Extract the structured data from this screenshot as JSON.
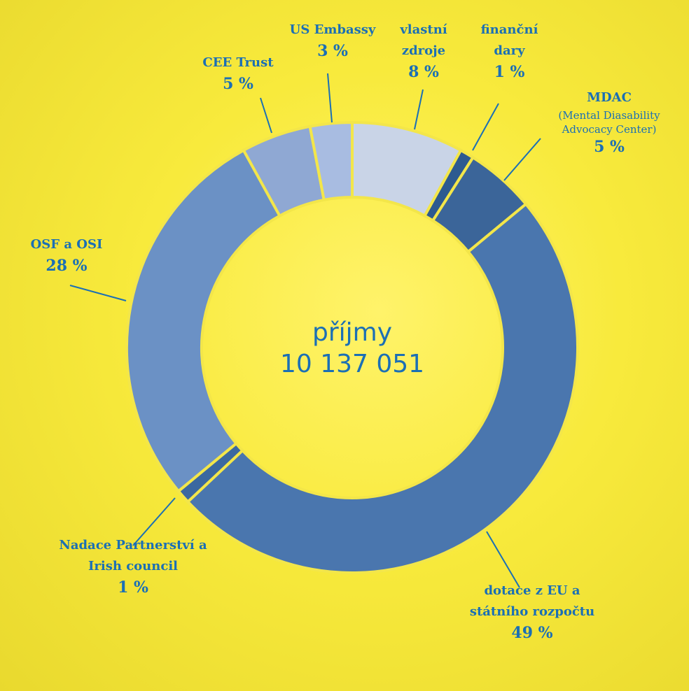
{
  "chart_data": {
    "type": "donut",
    "center_title": "příjmy",
    "center_value": "10 137 051",
    "categories": [
      "vlastní zdroje",
      "finanční dary",
      "MDAC",
      "dotace z EU a státního rozpočtu",
      "Nadace Partnerství a Irish council",
      "OSF a OSI",
      "CEE Trust",
      "US Embassy"
    ],
    "annotation": "(Mental Diasability Advocacy Center)",
    "values": [
      8,
      1,
      5,
      49,
      1,
      28,
      5,
      3
    ],
    "value_labels": [
      "8 %",
      "1 %",
      "5 %",
      "49 %",
      "1 %",
      "28 %",
      "5 %",
      "3 %"
    ],
    "colors": [
      "#c9d4e7",
      "#2d5a90",
      "#3b6599",
      "#4a76ae",
      "#3b68a0",
      "#6b91c5",
      "#8fa8d3",
      "#a8bce1"
    ]
  }
}
